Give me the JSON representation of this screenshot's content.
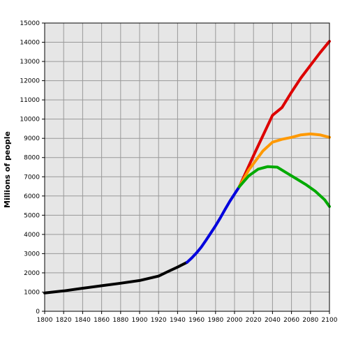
{
  "chart_data": {
    "type": "line",
    "title": "",
    "xlabel": "",
    "ylabel": "Millions of people",
    "xlim": [
      1800,
      2100
    ],
    "ylim": [
      0,
      15000
    ],
    "x_ticks": [
      1800,
      1820,
      1840,
      1860,
      1880,
      1900,
      1920,
      1940,
      1960,
      1980,
      2000,
      2020,
      2040,
      2060,
      2080,
      2100
    ],
    "y_ticks": [
      0,
      1000,
      2000,
      3000,
      4000,
      5000,
      6000,
      7000,
      8000,
      9000,
      10000,
      11000,
      12000,
      13000,
      14000,
      15000
    ],
    "grid": true,
    "legend": "none",
    "series": [
      {
        "color": "#000000",
        "points": [
          [
            1800,
            950
          ],
          [
            1820,
            1060
          ],
          [
            1840,
            1200
          ],
          [
            1860,
            1330
          ],
          [
            1880,
            1460
          ],
          [
            1900,
            1600
          ],
          [
            1920,
            1830
          ],
          [
            1930,
            2070
          ],
          [
            1940,
            2300
          ],
          [
            1950,
            2550
          ]
        ]
      },
      {
        "color": "#0000dd",
        "points": [
          [
            1950,
            2550
          ],
          [
            1955,
            2780
          ],
          [
            1960,
            3040
          ],
          [
            1965,
            3340
          ],
          [
            1970,
            3700
          ],
          [
            1975,
            4070
          ],
          [
            1980,
            4450
          ],
          [
            1985,
            4860
          ],
          [
            1990,
            5300
          ],
          [
            1995,
            5720
          ],
          [
            2000,
            6100
          ],
          [
            2005,
            6480
          ]
        ]
      },
      {
        "color": "#dd0000",
        "points": [
          [
            2005,
            6480
          ],
          [
            2020,
            8100
          ],
          [
            2040,
            10200
          ],
          [
            2050,
            10600
          ],
          [
            2060,
            11400
          ],
          [
            2070,
            12150
          ],
          [
            2080,
            12800
          ],
          [
            2090,
            13450
          ],
          [
            2100,
            14050
          ]
        ]
      },
      {
        "color": "#ff9900",
        "points": [
          [
            2005,
            6480
          ],
          [
            2015,
            7350
          ],
          [
            2030,
            8350
          ],
          [
            2040,
            8800
          ],
          [
            2050,
            8950
          ],
          [
            2060,
            9050
          ],
          [
            2070,
            9180
          ],
          [
            2080,
            9230
          ],
          [
            2090,
            9180
          ],
          [
            2100,
            9050
          ]
        ]
      },
      {
        "color": "#00aa00",
        "points": [
          [
            2005,
            6480
          ],
          [
            2015,
            7050
          ],
          [
            2025,
            7400
          ],
          [
            2035,
            7530
          ],
          [
            2045,
            7500
          ],
          [
            2055,
            7200
          ],
          [
            2065,
            6900
          ],
          [
            2075,
            6600
          ],
          [
            2085,
            6250
          ],
          [
            2095,
            5800
          ],
          [
            2100,
            5450
          ]
        ]
      }
    ]
  }
}
